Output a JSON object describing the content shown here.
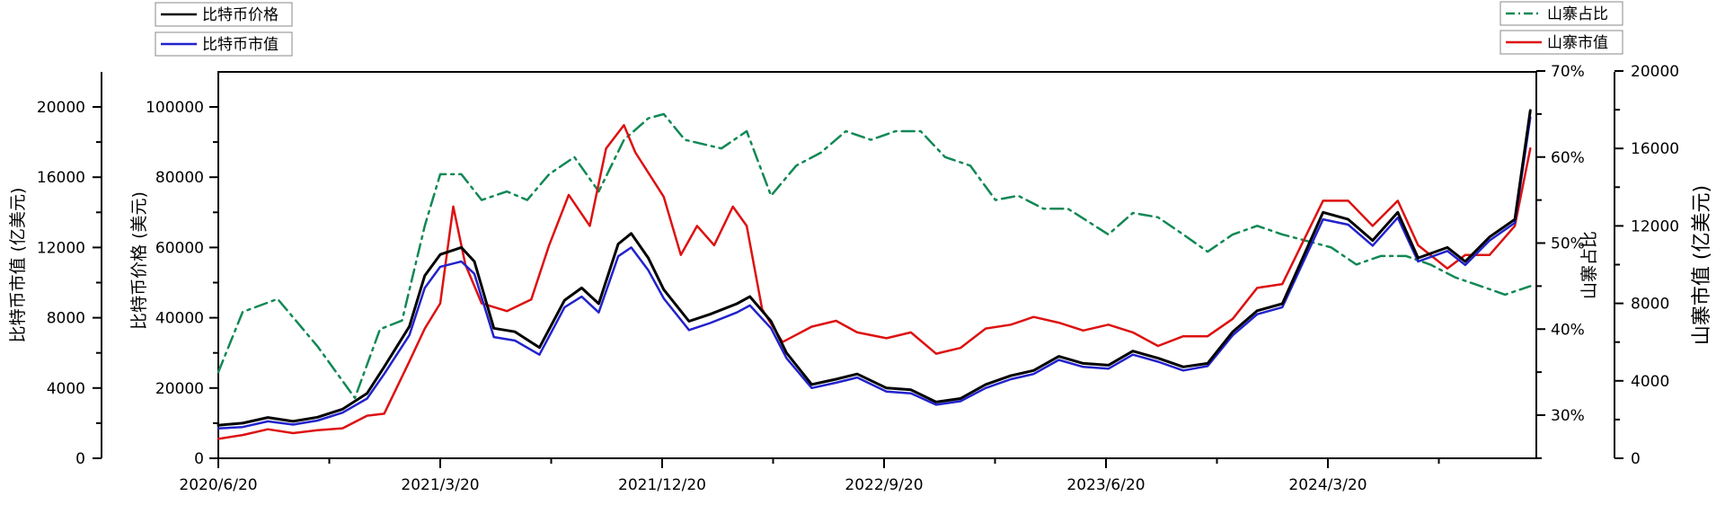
{
  "chart_data": {
    "type": "line",
    "x_tick_labels": [
      "2020/6/20",
      "2021/3/20",
      "2021/12/20",
      "2022/9/20",
      "2023/6/20",
      "2024/3/20"
    ],
    "axes": {
      "btc_mcap": {
        "label": "比特币市值 (亿美元)",
        "ylim": [
          0,
          22000
        ],
        "ticks": [
          0,
          4000,
          8000,
          12000,
          16000,
          20000
        ]
      },
      "btc_price": {
        "label": "比特币价格 (美元)",
        "ylim": [
          0,
          110000
        ],
        "ticks": [
          0,
          20000,
          40000,
          60000,
          80000,
          100000
        ]
      },
      "alt_share": {
        "label": "山寨占比",
        "ylim": [
          25,
          70
        ],
        "ticks": [
          "30%",
          "40%",
          "50%",
          "60%",
          "70%"
        ]
      },
      "alt_mcap": {
        "label": "山寨市值 (亿美元)",
        "ylim": [
          0,
          20000
        ],
        "ticks": [
          0,
          4000,
          8000,
          12000,
          16000,
          20000
        ]
      }
    },
    "legend_left": [
      "比特币价格",
      "比特币市值"
    ],
    "legend_right": [
      "山寨占比",
      "山寨市值"
    ],
    "series": [
      {
        "name": "比特币价格",
        "axis": "btc_price",
        "color": "#000000",
        "style": "solid",
        "x": [
          "2020-06-20",
          "2020-07-20",
          "2020-08-20",
          "2020-09-20",
          "2020-10-20",
          "2020-11-20",
          "2020-12-20",
          "2021-01-10",
          "2021-02-10",
          "2021-03-01",
          "2021-03-20",
          "2021-04-15",
          "2021-05-01",
          "2021-05-25",
          "2021-06-20",
          "2021-07-20",
          "2021-08-20",
          "2021-09-10",
          "2021-10-01",
          "2021-10-25",
          "2021-11-10",
          "2021-12-01",
          "2021-12-20",
          "2022-01-20",
          "2022-02-15",
          "2022-03-20",
          "2022-04-05",
          "2022-05-01",
          "2022-05-20",
          "2022-06-20",
          "2022-07-20",
          "2022-08-15",
          "2022-09-20",
          "2022-10-20",
          "2022-11-20",
          "2022-12-20",
          "2023-01-20",
          "2023-02-20",
          "2023-03-20",
          "2023-04-20",
          "2023-05-20",
          "2023-06-20",
          "2023-07-20",
          "2023-08-20",
          "2023-09-20",
          "2023-10-20",
          "2023-11-20",
          "2023-12-20",
          "2024-01-20",
          "2024-03-10",
          "2024-04-10",
          "2024-05-10",
          "2024-06-10",
          "2024-07-05",
          "2024-08-10",
          "2024-09-01",
          "2024-10-01",
          "2024-11-01",
          "2024-11-20"
        ],
        "y": [
          9400,
          10000,
          11600,
          10500,
          11700,
          14000,
          18500,
          26000,
          37500,
          52000,
          58000,
          60000,
          56000,
          37000,
          36000,
          31500,
          45000,
          48500,
          44000,
          61000,
          64000,
          57000,
          48000,
          39000,
          41000,
          44000,
          46000,
          39000,
          30000,
          21000,
          22500,
          24000,
          20000,
          19500,
          16000,
          17000,
          21000,
          23500,
          25000,
          29000,
          27000,
          26500,
          30500,
          28500,
          26000,
          27000,
          36000,
          42000,
          44000,
          70000,
          68000,
          62000,
          70000,
          57000,
          60000,
          56000,
          63000,
          68000,
          99000
        ]
      },
      {
        "name": "比特币市值",
        "axis": "btc_mcap",
        "color": "#2222cc",
        "style": "solid",
        "x": [
          "2020-06-20",
          "2020-07-20",
          "2020-08-20",
          "2020-09-20",
          "2020-10-20",
          "2020-11-20",
          "2020-12-20",
          "2021-01-10",
          "2021-02-10",
          "2021-03-01",
          "2021-03-20",
          "2021-04-15",
          "2021-05-01",
          "2021-05-25",
          "2021-06-20",
          "2021-07-20",
          "2021-08-20",
          "2021-09-10",
          "2021-10-01",
          "2021-10-25",
          "2021-11-10",
          "2021-12-01",
          "2021-12-20",
          "2022-01-20",
          "2022-02-15",
          "2022-03-20",
          "2022-04-05",
          "2022-05-01",
          "2022-05-20",
          "2022-06-20",
          "2022-07-20",
          "2022-08-15",
          "2022-09-20",
          "2022-10-20",
          "2022-11-20",
          "2022-12-20",
          "2023-01-20",
          "2023-02-20",
          "2023-03-20",
          "2023-04-20",
          "2023-05-20",
          "2023-06-20",
          "2023-07-20",
          "2023-08-20",
          "2023-09-20",
          "2023-10-20",
          "2023-11-20",
          "2023-12-20",
          "2024-01-20",
          "2024-03-10",
          "2024-04-10",
          "2024-05-10",
          "2024-06-10",
          "2024-07-05",
          "2024-08-10",
          "2024-09-01",
          "2024-10-01",
          "2024-11-01",
          "2024-11-20"
        ],
        "y": [
          1700,
          1780,
          2100,
          1920,
          2150,
          2600,
          3400,
          4800,
          7000,
          9700,
          10900,
          11200,
          10500,
          6900,
          6700,
          5900,
          8600,
          9200,
          8300,
          11500,
          12000,
          10700,
          9100,
          7300,
          7700,
          8300,
          8700,
          7400,
          5700,
          4000,
          4300,
          4600,
          3800,
          3700,
          3050,
          3250,
          4000,
          4500,
          4800,
          5600,
          5200,
          5100,
          5900,
          5500,
          5000,
          5250,
          7000,
          8200,
          8600,
          13600,
          13300,
          12100,
          13700,
          11200,
          11800,
          11000,
          12400,
          13400,
          19400
        ]
      },
      {
        "name": "山寨占比",
        "axis": "alt_share",
        "color": "#118855",
        "style": "dashdot",
        "x": [
          "2020-06-20",
          "2020-07-20",
          "2020-09-01",
          "2020-10-20",
          "2020-12-05",
          "2021-01-05",
          "2021-02-01",
          "2021-03-01",
          "2021-03-20",
          "2021-04-15",
          "2021-05-10",
          "2021-06-10",
          "2021-07-05",
          "2021-08-01",
          "2021-09-01",
          "2021-10-01",
          "2021-11-01",
          "2021-12-01",
          "2021-12-20",
          "2022-01-15",
          "2022-03-01",
          "2022-04-01",
          "2022-05-01",
          "2022-06-01",
          "2022-07-01",
          "2022-08-01",
          "2022-09-01",
          "2022-10-01",
          "2022-11-01",
          "2022-12-01",
          "2023-01-01",
          "2023-02-01",
          "2023-03-01",
          "2023-04-01",
          "2023-05-01",
          "2023-06-20",
          "2023-07-20",
          "2023-08-20",
          "2023-09-20",
          "2023-10-20",
          "2023-11-20",
          "2023-12-20",
          "2024-01-20",
          "2024-03-20",
          "2024-04-20",
          "2024-05-20",
          "2024-06-20",
          "2024-07-20",
          "2024-08-20",
          "2024-09-20",
          "2024-10-20",
          "2024-11-20"
        ],
        "y": [
          35,
          42,
          43.5,
          38,
          32,
          40,
          41,
          52,
          58,
          58,
          55,
          56,
          55,
          58,
          60,
          56,
          62,
          64.5,
          65,
          62,
          61,
          63,
          55.5,
          59,
          60.5,
          63,
          62,
          63,
          63,
          60,
          59,
          55,
          55.5,
          54,
          54,
          51,
          53.5,
          53,
          51,
          49,
          51,
          52,
          51,
          49.5,
          47.5,
          48.5,
          48.5,
          47.5,
          46,
          45,
          44,
          45
        ]
      },
      {
        "name": "山寨市值",
        "axis": "alt_mcap",
        "color": "#dd1111",
        "style": "solid",
        "x": [
          "2020-06-20",
          "2020-07-20",
          "2020-08-20",
          "2020-09-20",
          "2020-10-20",
          "2020-11-20",
          "2020-12-20",
          "2021-01-10",
          "2021-02-10",
          "2021-03-01",
          "2021-03-20",
          "2021-04-05",
          "2021-04-20",
          "2021-05-10",
          "2021-06-10",
          "2021-07-10",
          "2021-08-01",
          "2021-08-25",
          "2021-09-20",
          "2021-10-10",
          "2021-11-01",
          "2021-11-15",
          "2021-12-20",
          "2022-01-10",
          "2022-01-30",
          "2022-02-20",
          "2022-03-15",
          "2022-04-01",
          "2022-04-20",
          "2022-05-15",
          "2022-06-20",
          "2022-07-20",
          "2022-08-15",
          "2022-09-20",
          "2022-10-20",
          "2022-11-20",
          "2022-12-20",
          "2023-01-20",
          "2023-02-20",
          "2023-03-20",
          "2023-04-20",
          "2023-05-20",
          "2023-06-20",
          "2023-07-20",
          "2023-08-20",
          "2023-09-20",
          "2023-10-20",
          "2023-11-20",
          "2023-12-20",
          "2024-01-20",
          "2024-03-10",
          "2024-04-10",
          "2024-05-10",
          "2024-06-10",
          "2024-07-05",
          "2024-08-10",
          "2024-09-01",
          "2024-10-01",
          "2024-11-01",
          "2024-11-20"
        ],
        "y": [
          1000,
          1200,
          1500,
          1300,
          1450,
          1550,
          2200,
          2300,
          5000,
          6700,
          8000,
          13000,
          10000,
          8000,
          7600,
          8200,
          11000,
          13600,
          12000,
          16000,
          17200,
          15800,
          13500,
          10500,
          12000,
          11000,
          13000,
          12000,
          7700,
          6000,
          6800,
          7100,
          6500,
          6200,
          6500,
          5400,
          5700,
          6700,
          6900,
          7300,
          7000,
          6600,
          6900,
          6500,
          5800,
          6300,
          6300,
          7200,
          8800,
          9000,
          13300,
          13300,
          12000,
          13300,
          11000,
          9800,
          10500,
          10500,
          12000,
          16000
        ]
      }
    ]
  }
}
